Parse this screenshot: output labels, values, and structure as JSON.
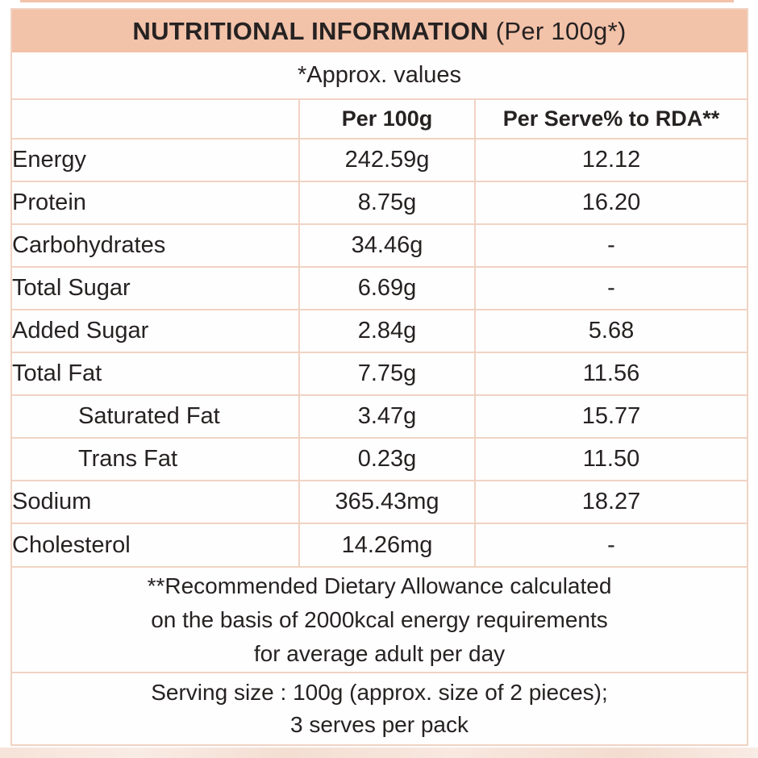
{
  "colors": {
    "header_bg": "#f2c2a9",
    "grid_border": "#f0d3c3",
    "text": "#262222",
    "bottom_strip": "#f6e3d9"
  },
  "header": {
    "title": "NUTRITIONAL INFORMATION",
    "subtitle": " (Per 100g*)"
  },
  "approx_note": "*Approx. values",
  "columns": {
    "nutrient": "",
    "per_100g": "Per 100g",
    "per_serve_rda": "Per Serve% to RDA**"
  },
  "rows": [
    {
      "label": "Energy",
      "per_100g": "242.59g",
      "per_serve_rda": "12.12"
    },
    {
      "label": "Protein",
      "per_100g": "8.75g",
      "per_serve_rda": "16.20"
    },
    {
      "label": "Carbohydrates",
      "per_100g": "34.46g",
      "per_serve_rda": "-"
    },
    {
      "label": "Total Sugar",
      "per_100g": "6.69g",
      "per_serve_rda": "-"
    },
    {
      "label": "Added Sugar",
      "per_100g": "2.84g",
      "per_serve_rda": "5.68"
    },
    {
      "label": "Total Fat",
      "per_100g": "7.75g",
      "per_serve_rda": "11.56"
    },
    {
      "label": "Saturated Fat",
      "per_100g": "3.47g",
      "per_serve_rda": "15.77"
    },
    {
      "label": "Trans Fat",
      "per_100g": "0.23g",
      "per_serve_rda": "11.50"
    },
    {
      "label": "Sodium",
      "per_100g": "365.43mg",
      "per_serve_rda": "18.27"
    },
    {
      "label": "Cholesterol",
      "per_100g": "14.26mg",
      "per_serve_rda": "-"
    }
  ],
  "rda_footnote": {
    "line1": "**Recommended Dietary Allowance calculated",
    "line2": "on the basis of 2000kcal energy requirements",
    "line3": "for average adult per day"
  },
  "serving_info": {
    "line1": "Serving size : 100g (approx. size of 2 pieces);",
    "line2": "3 serves per pack"
  }
}
